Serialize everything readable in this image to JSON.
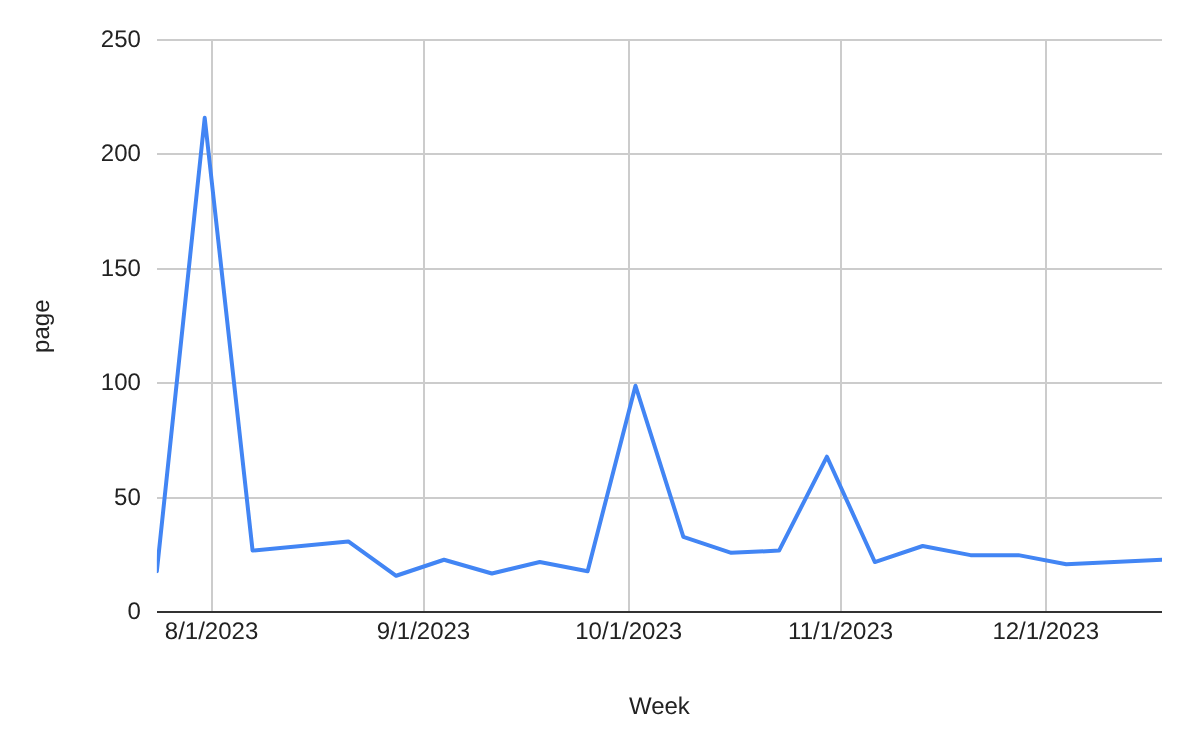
{
  "chart_data": {
    "type": "line",
    "xlabel": "Week",
    "ylabel": "page",
    "x": [
      "2023-07-24",
      "2023-07-31",
      "2023-08-07",
      "2023-08-21",
      "2023-08-28",
      "2023-09-04",
      "2023-09-11",
      "2023-09-18",
      "2023-09-25",
      "2023-10-02",
      "2023-10-09",
      "2023-10-16",
      "2023-10-23",
      "2023-10-30",
      "2023-11-06",
      "2023-11-13",
      "2023-11-20",
      "2023-11-27",
      "2023-12-04",
      "2023-12-18"
    ],
    "series": [
      {
        "color": "#4285f4",
        "values": [
          18,
          216,
          27,
          31,
          16,
          23,
          17,
          22,
          18,
          99,
          33,
          26,
          27,
          68,
          22,
          29,
          25,
          25,
          21,
          23
        ]
      }
    ],
    "xlim": [
      "2023-07-24",
      "2023-12-18"
    ],
    "xticks": [
      {
        "value": "2023-08-01",
        "label": "8/1/2023"
      },
      {
        "value": "2023-09-01",
        "label": "9/1/2023"
      },
      {
        "value": "2023-10-01",
        "label": "10/1/2023"
      },
      {
        "value": "2023-11-01",
        "label": "11/1/2023"
      },
      {
        "value": "2023-12-01",
        "label": "12/1/2023"
      }
    ],
    "ylim": [
      0,
      250
    ],
    "yticks": [
      0,
      50,
      100,
      150,
      200,
      250
    ],
    "grid": true,
    "legend": false,
    "marker": "none",
    "line_style": "solid"
  }
}
